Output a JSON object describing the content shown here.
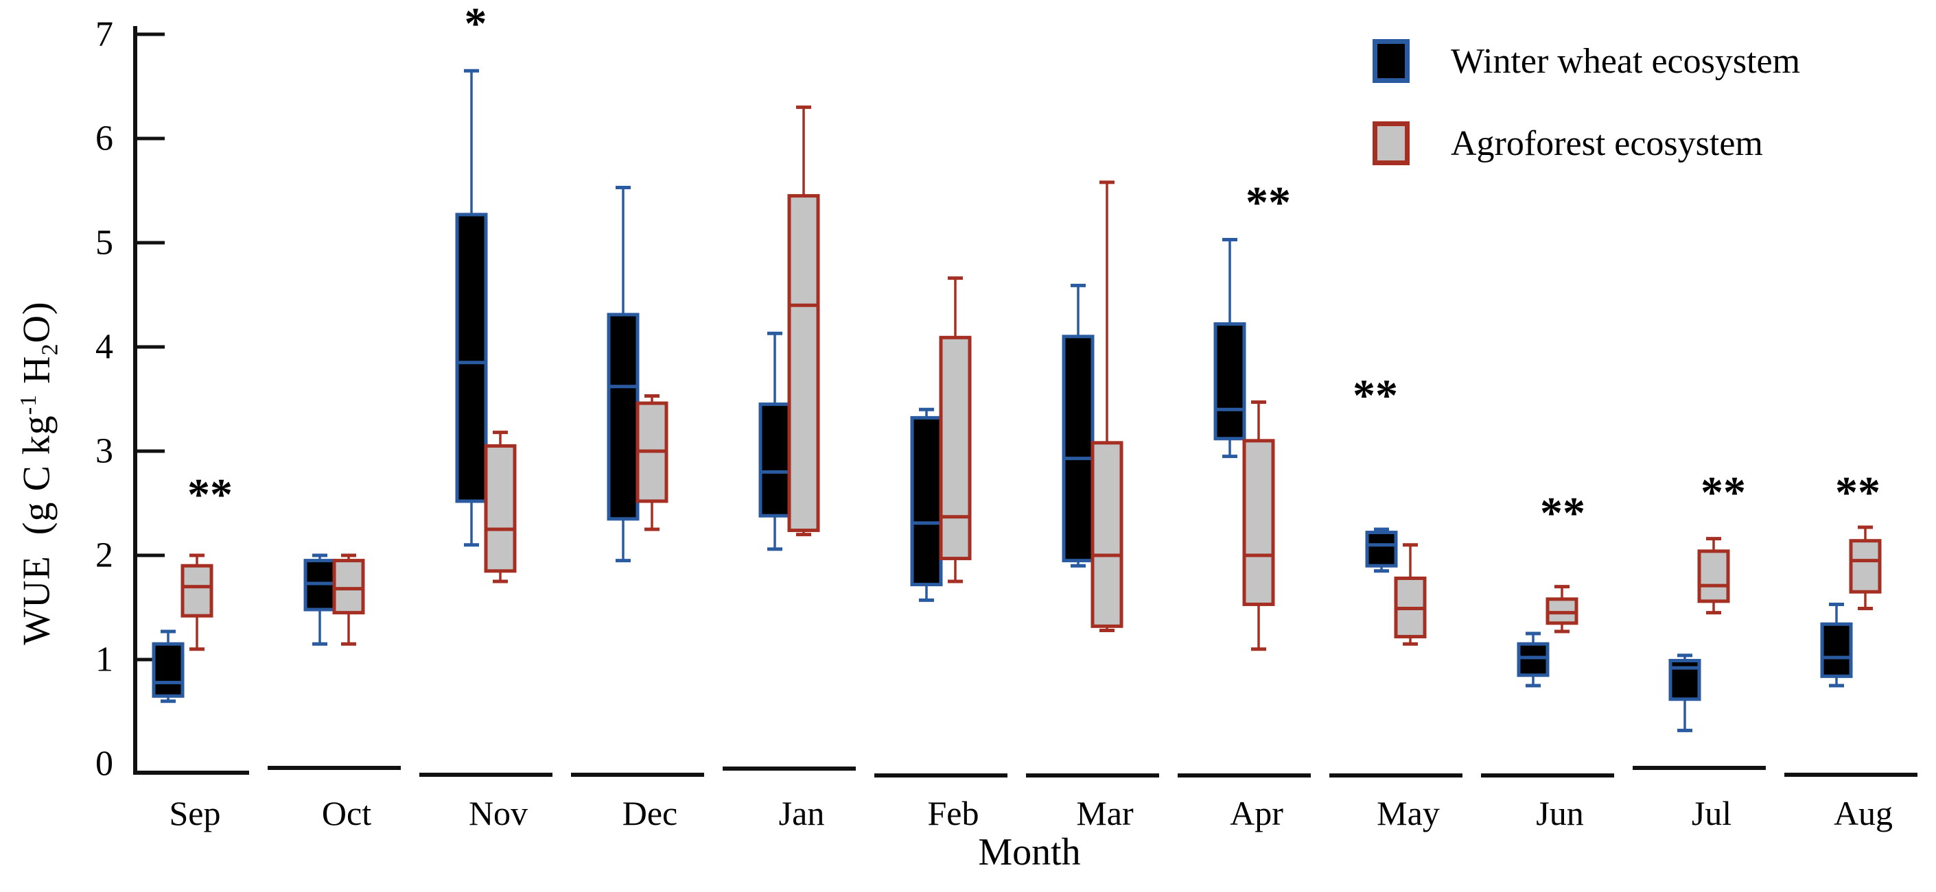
{
  "chart": {
    "ylabel": {
      "pre": "WUE  (g C kg",
      "sup": "-1",
      "mid": " H",
      "sub": "2",
      "suf": "O)"
    },
    "xlabel": "Month"
  },
  "legend": {
    "items": [
      {
        "label": "Winter wheat ecosystem",
        "fill": "#000000",
        "stroke": "#2a5aa0"
      },
      {
        "label": "Agroforest ecosystem",
        "fill": "#c4c4c4",
        "stroke": "#a52f22"
      }
    ]
  },
  "chart_data": {
    "type": "boxplot",
    "title": "",
    "xlabel": "Month",
    "ylabel": "WUE (g C kg-1 H2O)",
    "ylim": [
      0,
      7
    ],
    "yticks": [
      0,
      1,
      2,
      3,
      4,
      5,
      6,
      7
    ],
    "grid": false,
    "legend_position": "top-right",
    "categories": [
      "Sep",
      "Oct",
      "Nov",
      "Dec",
      "Jan",
      "Feb",
      "Mar",
      "Apr",
      "May",
      "Jun",
      "Jul",
      "Aug"
    ],
    "series": [
      {
        "name": "Winter wheat ecosystem",
        "stroke": "#2a5aa0",
        "fill": "#000000",
        "boxes": [
          {
            "low": 0.6,
            "q1": 0.65,
            "median": 0.78,
            "q3": 1.15,
            "high": 1.27
          },
          {
            "low": 1.15,
            "q1": 1.48,
            "median": 1.73,
            "q3": 1.95,
            "high": 2.0
          },
          {
            "low": 2.1,
            "q1": 2.52,
            "median": 3.85,
            "q3": 5.27,
            "high": 6.65
          },
          {
            "low": 1.95,
            "q1": 2.35,
            "median": 3.62,
            "q3": 4.31,
            "high": 5.53
          },
          {
            "low": 2.06,
            "q1": 2.38,
            "median": 2.8,
            "q3": 3.45,
            "high": 4.13
          },
          {
            "low": 1.57,
            "q1": 1.72,
            "median": 2.31,
            "q3": 3.32,
            "high": 3.4
          },
          {
            "low": 1.9,
            "q1": 1.95,
            "median": 2.93,
            "q3": 4.1,
            "high": 4.59
          },
          {
            "low": 2.95,
            "q1": 3.12,
            "median": 3.4,
            "q3": 4.22,
            "high": 5.03
          },
          {
            "low": 1.85,
            "q1": 1.9,
            "median": 2.1,
            "q3": 2.22,
            "high": 2.25
          },
          {
            "low": 0.75,
            "q1": 0.85,
            "median": 1.02,
            "q3": 1.15,
            "high": 1.25
          },
          {
            "low": 0.32,
            "q1": 0.62,
            "median": 0.92,
            "q3": 0.99,
            "high": 1.04
          },
          {
            "low": 0.75,
            "q1": 0.84,
            "median": 1.02,
            "q3": 1.34,
            "high": 1.53
          }
        ]
      },
      {
        "name": "Agroforest ecosystem",
        "stroke": "#a52f22",
        "fill": "#c4c4c4",
        "boxes": [
          {
            "low": 1.1,
            "q1": 1.42,
            "median": 1.7,
            "q3": 1.9,
            "high": 2.0
          },
          {
            "low": 1.15,
            "q1": 1.45,
            "median": 1.68,
            "q3": 1.95,
            "high": 2.0
          },
          {
            "low": 1.75,
            "q1": 1.85,
            "median": 2.25,
            "q3": 3.05,
            "high": 3.18
          },
          {
            "low": 2.25,
            "q1": 2.52,
            "median": 3.0,
            "q3": 3.46,
            "high": 3.53
          },
          {
            "low": 2.2,
            "q1": 2.24,
            "median": 4.4,
            "q3": 5.45,
            "high": 6.3
          },
          {
            "low": 1.75,
            "q1": 1.97,
            "median": 2.37,
            "q3": 4.09,
            "high": 4.66
          },
          {
            "low": 1.28,
            "q1": 1.32,
            "median": 2.0,
            "q3": 3.08,
            "high": 5.58
          },
          {
            "low": 1.1,
            "q1": 1.53,
            "median": 2.0,
            "q3": 3.1,
            "high": 3.47
          },
          {
            "low": 1.15,
            "q1": 1.22,
            "median": 1.49,
            "q3": 1.78,
            "high": 2.1
          },
          {
            "low": 1.27,
            "q1": 1.35,
            "median": 1.45,
            "q3": 1.58,
            "high": 1.7
          },
          {
            "low": 1.45,
            "q1": 1.56,
            "median": 1.71,
            "q3": 2.04,
            "high": 2.16
          },
          {
            "low": 1.49,
            "q1": 1.65,
            "median": 1.95,
            "q3": 2.14,
            "high": 2.27
          }
        ]
      }
    ],
    "annotations": [
      {
        "category": "Sep",
        "text": "**",
        "dx": 40,
        "y": 2.6
      },
      {
        "category": "Nov",
        "text": "*",
        "dx": -15,
        "y": 7.12
      },
      {
        "category": "Apr",
        "text": "**",
        "dx": 35,
        "y": 5.4
      },
      {
        "category": "May",
        "text": "**",
        "dx": -30,
        "y": 3.55
      },
      {
        "category": "Jun",
        "text": "**",
        "dx": 22,
        "y": 2.42
      },
      {
        "category": "Jul",
        "text": "**",
        "dx": 35,
        "y": 2.62
      },
      {
        "category": "Aug",
        "text": "**",
        "dx": 10,
        "y": 2.62
      }
    ]
  }
}
